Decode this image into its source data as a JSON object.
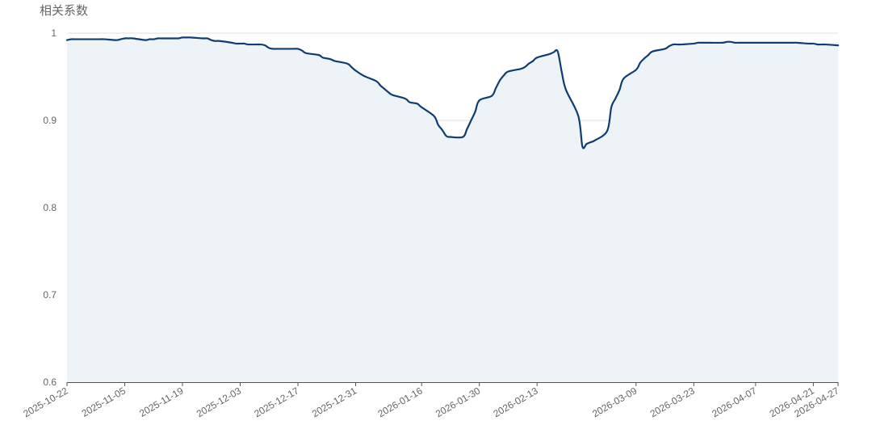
{
  "chart_data": {
    "type": "area",
    "ylabel": "相关系数",
    "ylim": [
      0.6,
      1.0
    ],
    "yticks": [
      0.6,
      0.7,
      0.8,
      0.9,
      1.0
    ],
    "ytick_labels": [
      "0.6",
      "0.7",
      "0.8",
      "0.9",
      "1"
    ],
    "x_start": "2025-10-22",
    "x_end": "2026-04-27",
    "xtick_labels": [
      "2025-10-22",
      "2025-11-05",
      "2025-11-19",
      "2025-12-03",
      "2025-12-17",
      "2025-12-31",
      "2026-01-16",
      "2026-01-30",
      "2026-02-13",
      "2026-03-09",
      "2026-03-23",
      "2026-04-07",
      "2026-04-21",
      "2026-04-27"
    ],
    "grid": true,
    "line_color": "#0d3d73",
    "fill_color": "#eef3f7",
    "grid_color": "#dcdfe6",
    "axis_color": "#555555",
    "points": [
      [
        "2025-10-22",
        0.992
      ],
      [
        "2025-10-23",
        0.993
      ],
      [
        "2025-10-24",
        0.993
      ],
      [
        "2025-10-27",
        0.993
      ],
      [
        "2025-10-28",
        0.993
      ],
      [
        "2025-10-29",
        0.993
      ],
      [
        "2025-10-30",
        0.993
      ],
      [
        "2025-10-31",
        0.993
      ],
      [
        "2025-11-03",
        0.992
      ],
      [
        "2025-11-04",
        0.993
      ],
      [
        "2025-11-05",
        0.994
      ],
      [
        "2025-11-06",
        0.994
      ],
      [
        "2025-11-07",
        0.994
      ],
      [
        "2025-11-10",
        0.992
      ],
      [
        "2025-11-11",
        0.993
      ],
      [
        "2025-11-12",
        0.993
      ],
      [
        "2025-11-13",
        0.994
      ],
      [
        "2025-11-14",
        0.994
      ],
      [
        "2025-11-17",
        0.994
      ],
      [
        "2025-11-18",
        0.994
      ],
      [
        "2025-11-19",
        0.995
      ],
      [
        "2025-11-20",
        0.995
      ],
      [
        "2025-11-21",
        0.995
      ],
      [
        "2025-11-24",
        0.994
      ],
      [
        "2025-11-25",
        0.994
      ],
      [
        "2025-11-26",
        0.992
      ],
      [
        "2025-11-27",
        0.991
      ],
      [
        "2025-11-28",
        0.991
      ],
      [
        "2025-12-01",
        0.989
      ],
      [
        "2025-12-02",
        0.988
      ],
      [
        "2025-12-03",
        0.988
      ],
      [
        "2025-12-04",
        0.988
      ],
      [
        "2025-12-05",
        0.987
      ],
      [
        "2025-12-08",
        0.987
      ],
      [
        "2025-12-09",
        0.986
      ],
      [
        "2025-12-10",
        0.983
      ],
      [
        "2025-12-11",
        0.982
      ],
      [
        "2025-12-12",
        0.982
      ],
      [
        "2025-12-15",
        0.982
      ],
      [
        "2025-12-16",
        0.982
      ],
      [
        "2025-12-17",
        0.982
      ],
      [
        "2025-12-18",
        0.98
      ],
      [
        "2025-12-19",
        0.977
      ],
      [
        "2025-12-22",
        0.975
      ],
      [
        "2025-12-23",
        0.972
      ],
      [
        "2025-12-24",
        0.971
      ],
      [
        "2025-12-25",
        0.97
      ],
      [
        "2025-12-26",
        0.968
      ],
      [
        "2025-12-29",
        0.965
      ],
      [
        "2025-12-30",
        0.961
      ],
      [
        "2025-12-31",
        0.957
      ],
      [
        "2026-01-02",
        0.951
      ],
      [
        "2026-01-05",
        0.945
      ],
      [
        "2026-01-06",
        0.94
      ],
      [
        "2026-01-07",
        0.936
      ],
      [
        "2026-01-08",
        0.932
      ],
      [
        "2026-01-09",
        0.929
      ],
      [
        "2026-01-12",
        0.925
      ],
      [
        "2026-01-13",
        0.921
      ],
      [
        "2026-01-14",
        0.92
      ],
      [
        "2026-01-15",
        0.919
      ],
      [
        "2026-01-16",
        0.915
      ],
      [
        "2026-01-19",
        0.905
      ],
      [
        "2026-01-20",
        0.895
      ],
      [
        "2026-01-21",
        0.889
      ],
      [
        "2026-01-22",
        0.882
      ],
      [
        "2026-01-23",
        0.881
      ],
      [
        "2026-01-26",
        0.881
      ],
      [
        "2026-01-27",
        0.89
      ],
      [
        "2026-01-28",
        0.9
      ],
      [
        "2026-01-29",
        0.91
      ],
      [
        "2026-01-30",
        0.923
      ],
      [
        "2026-02-02",
        0.928
      ],
      [
        "2026-02-03",
        0.937
      ],
      [
        "2026-02-04",
        0.946
      ],
      [
        "2026-02-05",
        0.952
      ],
      [
        "2026-02-06",
        0.956
      ],
      [
        "2026-02-09",
        0.959
      ],
      [
        "2026-02-10",
        0.961
      ],
      [
        "2026-02-11",
        0.965
      ],
      [
        "2026-02-12",
        0.968
      ],
      [
        "2026-02-13",
        0.972
      ],
      [
        "2026-02-16",
        0.976
      ],
      [
        "2026-02-17",
        0.978
      ],
      [
        "2026-02-18",
        0.979
      ],
      [
        "2026-02-19",
        0.955
      ],
      [
        "2026-02-20",
        0.935
      ],
      [
        "2026-02-23",
        0.905
      ],
      [
        "2026-02-24",
        0.87
      ],
      [
        "2026-02-25",
        0.873
      ],
      [
        "2026-02-26",
        0.875
      ],
      [
        "2026-02-27",
        0.877
      ],
      [
        "2026-03-02",
        0.888
      ],
      [
        "2026-03-03",
        0.915
      ],
      [
        "2026-03-04",
        0.925
      ],
      [
        "2026-03-05",
        0.935
      ],
      [
        "2026-03-06",
        0.948
      ],
      [
        "2026-03-09",
        0.958
      ],
      [
        "2026-03-10",
        0.966
      ],
      [
        "2026-03-11",
        0.971
      ],
      [
        "2026-03-12",
        0.975
      ],
      [
        "2026-03-13",
        0.979
      ],
      [
        "2026-03-16",
        0.982
      ],
      [
        "2026-03-17",
        0.985
      ],
      [
        "2026-03-18",
        0.987
      ],
      [
        "2026-03-19",
        0.987
      ],
      [
        "2026-03-20",
        0.987
      ],
      [
        "2026-03-23",
        0.988
      ],
      [
        "2026-03-24",
        0.989
      ],
      [
        "2026-03-25",
        0.989
      ],
      [
        "2026-03-26",
        0.989
      ],
      [
        "2026-03-27",
        0.989
      ],
      [
        "2026-03-30",
        0.989
      ],
      [
        "2026-03-31",
        0.99
      ],
      [
        "2026-04-01",
        0.99
      ],
      [
        "2026-04-02",
        0.989
      ],
      [
        "2026-04-03",
        0.989
      ],
      [
        "2026-04-07",
        0.989
      ],
      [
        "2026-04-08",
        0.989
      ],
      [
        "2026-04-09",
        0.989
      ],
      [
        "2026-04-10",
        0.989
      ],
      [
        "2026-04-13",
        0.989
      ],
      [
        "2026-04-14",
        0.989
      ],
      [
        "2026-04-15",
        0.989
      ],
      [
        "2026-04-16",
        0.989
      ],
      [
        "2026-04-17",
        0.989
      ],
      [
        "2026-04-20",
        0.988
      ],
      [
        "2026-04-21",
        0.988
      ],
      [
        "2026-04-22",
        0.987
      ],
      [
        "2026-04-23",
        0.987
      ],
      [
        "2026-04-24",
        0.987
      ],
      [
        "2026-04-27",
        0.986
      ]
    ]
  }
}
